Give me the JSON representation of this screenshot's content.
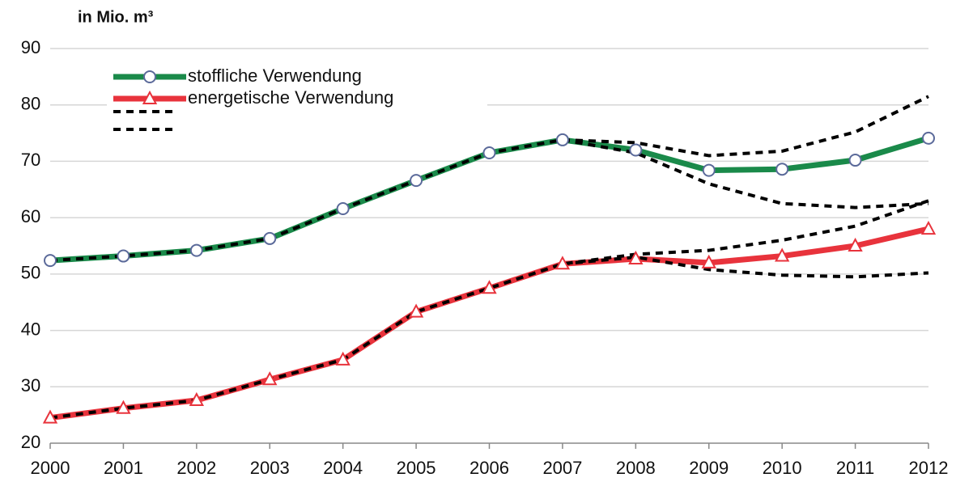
{
  "chart_data": {
    "type": "line",
    "unit_label": "in Mio. m³",
    "x": [
      2000,
      2001,
      2002,
      2003,
      2004,
      2005,
      2006,
      2007,
      2008,
      2009,
      2010,
      2011,
      2012
    ],
    "series": [
      {
        "name": "stoffliche Verwendung",
        "color": "#1a8a4a",
        "marker": "circle",
        "values": [
          52.4,
          53.2,
          54.2,
          56.3,
          61.6,
          66.6,
          71.5,
          73.8,
          72.0,
          68.4,
          68.6,
          70.2,
          74.1
        ]
      },
      {
        "name": "energetische Verwendung",
        "color": "#e8333c",
        "marker": "triangle",
        "values": [
          24.5,
          26.2,
          27.6,
          31.3,
          34.8,
          43.3,
          47.5,
          51.8,
          52.7,
          52.0,
          53.2,
          55.0,
          58.0
        ]
      },
      {
        "color": "#000000",
        "dashed": true,
        "values": [
          52.4,
          53.2,
          54.2,
          56.3,
          61.6,
          66.6,
          71.5,
          73.8,
          73.3,
          71.0,
          71.8,
          75.2,
          81.5
        ]
      },
      {
        "color": "#000000",
        "dashed": true,
        "values": [
          null,
          null,
          null,
          null,
          null,
          null,
          null,
          73.8,
          71.5,
          66.0,
          62.5,
          61.8,
          62.5
        ]
      },
      {
        "color": "#000000",
        "dashed": true,
        "values": [
          24.5,
          26.2,
          27.6,
          31.3,
          34.8,
          43.3,
          47.5,
          51.8,
          53.5,
          54.2,
          56.0,
          58.5,
          63.0
        ]
      },
      {
        "color": "#000000",
        "dashed": true,
        "values": [
          null,
          null,
          null,
          null,
          null,
          null,
          null,
          51.8,
          53.0,
          50.8,
          49.8,
          49.5,
          50.2
        ]
      }
    ],
    "xlim": [
      2000,
      2012
    ],
    "xticks": [
      2000,
      2001,
      2002,
      2003,
      2004,
      2005,
      2006,
      2007,
      2008,
      2009,
      2010,
      2011,
      2012
    ],
    "ylim": [
      20,
      90
    ],
    "yticks": [
      20,
      30,
      40,
      50,
      60,
      70,
      80,
      90
    ],
    "grid": true
  }
}
